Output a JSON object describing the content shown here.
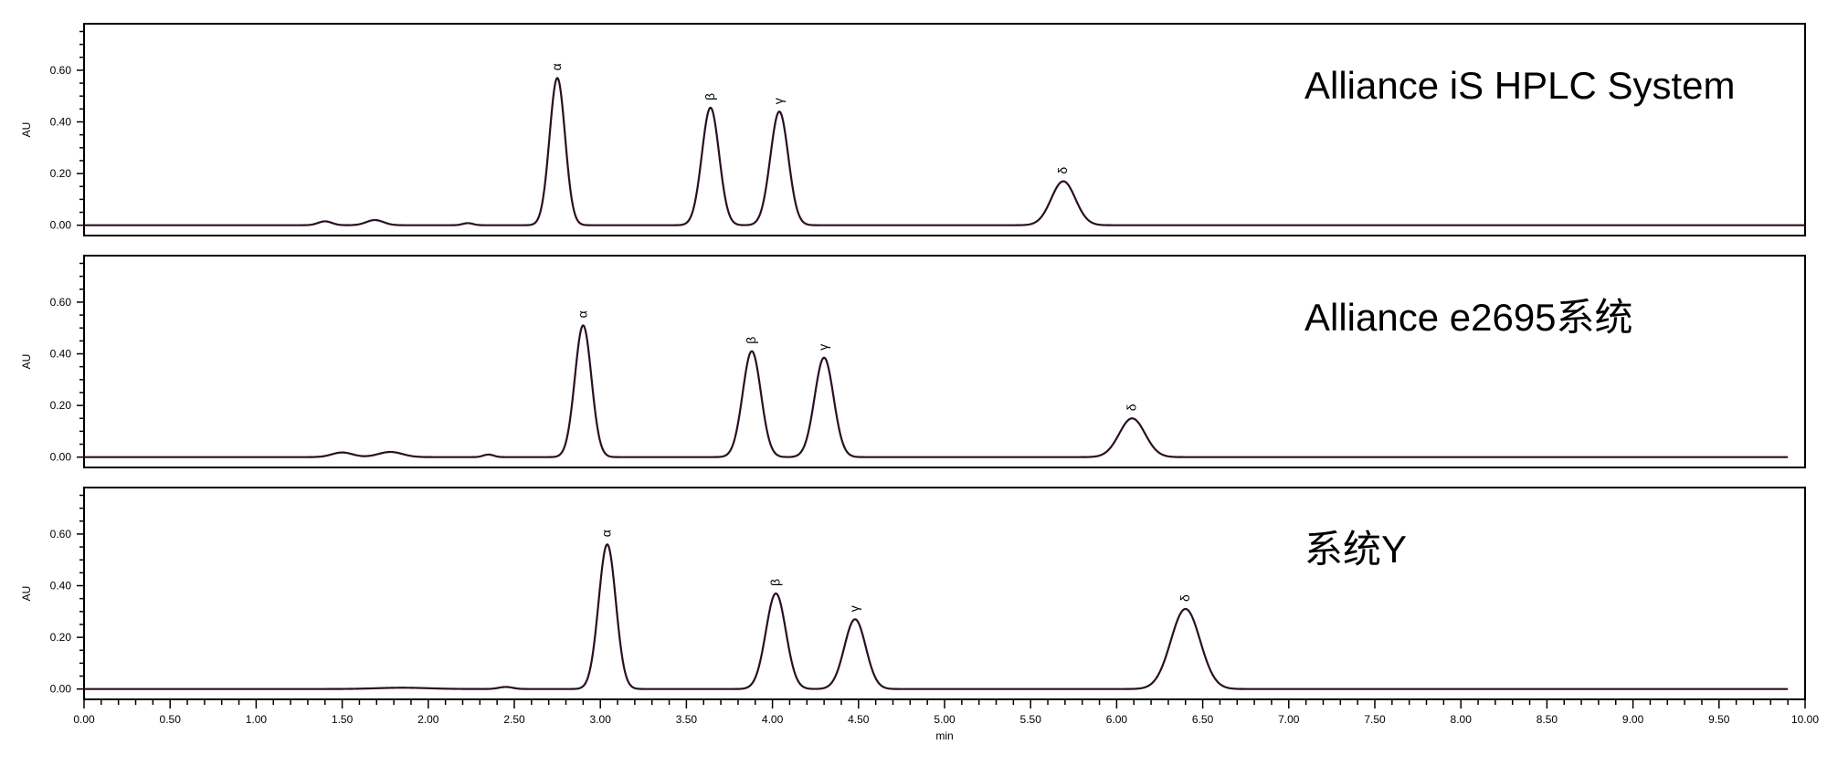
{
  "chart_data": [
    {
      "type": "line",
      "title": "Alliance iS HPLC System",
      "ylabel": "AU",
      "xlim": [
        0,
        10
      ],
      "ylim": [
        -0.04,
        0.78
      ],
      "yticks": [
        "0.00",
        "0.20",
        "0.40",
        "0.60"
      ],
      "line_color": "#2a0f24",
      "peaks": [
        {
          "label": "α",
          "x": 2.75,
          "y": 0.57,
          "width": 0.045
        },
        {
          "label": "β",
          "x": 3.64,
          "y": 0.455,
          "width": 0.05
        },
        {
          "label": "γ",
          "x": 4.04,
          "y": 0.44,
          "width": 0.052
        },
        {
          "label": "δ",
          "x": 5.69,
          "y": 0.17,
          "width": 0.07
        }
      ],
      "minor_bumps": [
        {
          "x": 1.4,
          "y": 0.015,
          "width": 0.04
        },
        {
          "x": 1.69,
          "y": 0.02,
          "width": 0.05
        },
        {
          "x": 2.23,
          "y": 0.008,
          "width": 0.03
        }
      ]
    },
    {
      "type": "line",
      "title": "Alliance e2695系统",
      "ylabel": "AU",
      "xlim": [
        0,
        10
      ],
      "ylim": [
        -0.04,
        0.78
      ],
      "yticks": [
        "0.00",
        "0.20",
        "0.40",
        "0.60"
      ],
      "line_color": "#2a0f24",
      "peaks": [
        {
          "label": "α",
          "x": 2.9,
          "y": 0.51,
          "width": 0.048
        },
        {
          "label": "β",
          "x": 3.88,
          "y": 0.41,
          "width": 0.053
        },
        {
          "label": "γ",
          "x": 4.3,
          "y": 0.385,
          "width": 0.055
        },
        {
          "label": "δ",
          "x": 6.09,
          "y": 0.15,
          "width": 0.075
        }
      ],
      "minor_bumps": [
        {
          "x": 1.5,
          "y": 0.018,
          "width": 0.06
        },
        {
          "x": 1.78,
          "y": 0.02,
          "width": 0.07
        },
        {
          "x": 2.35,
          "y": 0.01,
          "width": 0.03
        }
      ]
    },
    {
      "type": "line",
      "title": "系统Y",
      "ylabel": "AU",
      "xlabel": "min",
      "xlim": [
        0,
        10
      ],
      "ylim": [
        -0.04,
        0.78
      ],
      "yticks": [
        "0.00",
        "0.20",
        "0.40",
        "0.60"
      ],
      "xticks": [
        "0.00",
        "0.50",
        "1.00",
        "1.50",
        "2.00",
        "2.50",
        "3.00",
        "3.50",
        "4.00",
        "4.50",
        "5.00",
        "5.50",
        "6.00",
        "6.50",
        "7.00",
        "7.50",
        "8.00",
        "8.50",
        "9.00",
        "9.50",
        "10.00"
      ],
      "line_color": "#2a0f24",
      "peaks": [
        {
          "label": "α",
          "x": 3.04,
          "y": 0.56,
          "width": 0.05
        },
        {
          "label": "β",
          "x": 4.02,
          "y": 0.37,
          "width": 0.058
        },
        {
          "label": "γ",
          "x": 4.48,
          "y": 0.27,
          "width": 0.062
        },
        {
          "label": "δ",
          "x": 6.4,
          "y": 0.31,
          "width": 0.085
        }
      ],
      "minor_bumps": [
        {
          "x": 1.85,
          "y": 0.005,
          "width": 0.15
        },
        {
          "x": 2.45,
          "y": 0.008,
          "width": 0.04
        }
      ]
    }
  ]
}
